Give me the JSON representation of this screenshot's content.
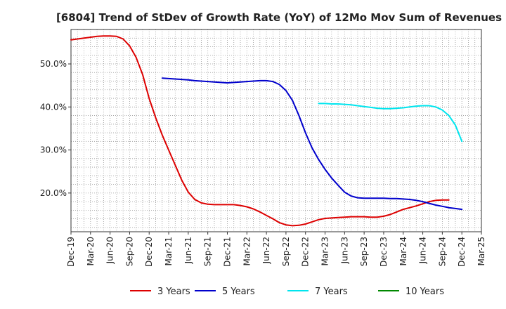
{
  "chart_data": {
    "type": "line",
    "title": "[6804]  Trend of StDev of Growth Rate (YoY) of 12Mo Mov Sum of Revenues",
    "xlabel": "",
    "ylabel": "",
    "ylim": [
      11,
      58
    ],
    "x_range": [
      "2019-12",
      "2025-03"
    ],
    "y_ticks": [
      {
        "value": 20,
        "label": "20.0%"
      },
      {
        "value": 30,
        "label": "30.0%"
      },
      {
        "value": 40,
        "label": "40.0%"
      },
      {
        "value": 50,
        "label": "50.0%"
      }
    ],
    "x_ticks": [
      "Dec-19",
      "Mar-20",
      "Jun-20",
      "Sep-20",
      "Dec-20",
      "Mar-21",
      "Jun-21",
      "Sep-21",
      "Dec-21",
      "Mar-22",
      "Jun-22",
      "Sep-22",
      "Dec-22",
      "Mar-23",
      "Jun-23",
      "Sep-23",
      "Dec-23",
      "Mar-24",
      "Jun-24",
      "Sep-24",
      "Dec-24",
      "Mar-25"
    ],
    "series": [
      {
        "name": "3 Years",
        "color": "#dd0000",
        "points": [
          [
            "2019-12",
            55.6
          ],
          [
            "2020-01",
            55.8
          ],
          [
            "2020-02",
            56.0
          ],
          [
            "2020-03",
            56.2
          ],
          [
            "2020-04",
            56.4
          ],
          [
            "2020-05",
            56.5
          ],
          [
            "2020-06",
            56.5
          ],
          [
            "2020-07",
            56.4
          ],
          [
            "2020-08",
            55.8
          ],
          [
            "2020-09",
            54.2
          ],
          [
            "2020-10",
            51.5
          ],
          [
            "2020-11",
            47.5
          ],
          [
            "2020-12",
            42.0
          ],
          [
            "2021-01",
            37.5
          ],
          [
            "2021-02",
            33.5
          ],
          [
            "2021-03",
            30.0
          ],
          [
            "2021-04",
            26.5
          ],
          [
            "2021-05",
            23.0
          ],
          [
            "2021-06",
            20.2
          ],
          [
            "2021-07",
            18.5
          ],
          [
            "2021-08",
            17.7
          ],
          [
            "2021-09",
            17.4
          ],
          [
            "2021-10",
            17.3
          ],
          [
            "2021-11",
            17.3
          ],
          [
            "2021-12",
            17.3
          ],
          [
            "2022-01",
            17.3
          ],
          [
            "2022-02",
            17.1
          ],
          [
            "2022-03",
            16.8
          ],
          [
            "2022-04",
            16.3
          ],
          [
            "2022-05",
            15.6
          ],
          [
            "2022-06",
            14.8
          ],
          [
            "2022-07",
            14.0
          ],
          [
            "2022-08",
            13.1
          ],
          [
            "2022-09",
            12.6
          ],
          [
            "2022-10",
            12.4
          ],
          [
            "2022-11",
            12.5
          ],
          [
            "2022-12",
            12.8
          ],
          [
            "2023-01",
            13.3
          ],
          [
            "2023-02",
            13.8
          ],
          [
            "2023-03",
            14.1
          ],
          [
            "2023-04",
            14.2
          ],
          [
            "2023-05",
            14.3
          ],
          [
            "2023-06",
            14.4
          ],
          [
            "2023-07",
            14.5
          ],
          [
            "2023-08",
            14.5
          ],
          [
            "2023-09",
            14.5
          ],
          [
            "2023-10",
            14.4
          ],
          [
            "2023-11",
            14.4
          ],
          [
            "2023-12",
            14.6
          ],
          [
            "2024-01",
            15.0
          ],
          [
            "2024-02",
            15.6
          ],
          [
            "2024-03",
            16.2
          ],
          [
            "2024-04",
            16.6
          ],
          [
            "2024-05",
            17.0
          ],
          [
            "2024-06",
            17.5
          ],
          [
            "2024-07",
            18.0
          ],
          [
            "2024-08",
            18.3
          ],
          [
            "2024-09",
            18.4
          ],
          [
            "2024-10",
            18.4
          ]
        ]
      },
      {
        "name": "5 Years",
        "color": "#0000cc",
        "points": [
          [
            "2021-02",
            46.7
          ],
          [
            "2021-03",
            46.6
          ],
          [
            "2021-04",
            46.5
          ],
          [
            "2021-05",
            46.4
          ],
          [
            "2021-06",
            46.3
          ],
          [
            "2021-07",
            46.1
          ],
          [
            "2021-08",
            46.0
          ],
          [
            "2021-09",
            45.9
          ],
          [
            "2021-10",
            45.8
          ],
          [
            "2021-11",
            45.7
          ],
          [
            "2021-12",
            45.6
          ],
          [
            "2022-01",
            45.7
          ],
          [
            "2022-02",
            45.8
          ],
          [
            "2022-03",
            45.9
          ],
          [
            "2022-04",
            46.0
          ],
          [
            "2022-05",
            46.1
          ],
          [
            "2022-06",
            46.1
          ],
          [
            "2022-07",
            45.9
          ],
          [
            "2022-08",
            45.2
          ],
          [
            "2022-09",
            43.8
          ],
          [
            "2022-10",
            41.5
          ],
          [
            "2022-11",
            38.0
          ],
          [
            "2022-12",
            34.0
          ],
          [
            "2023-01",
            30.5
          ],
          [
            "2023-02",
            27.8
          ],
          [
            "2023-03",
            25.5
          ],
          [
            "2023-04",
            23.5
          ],
          [
            "2023-05",
            21.8
          ],
          [
            "2023-06",
            20.2
          ],
          [
            "2023-07",
            19.3
          ],
          [
            "2023-08",
            18.9
          ],
          [
            "2023-09",
            18.8
          ],
          [
            "2023-10",
            18.8
          ],
          [
            "2023-11",
            18.8
          ],
          [
            "2023-12",
            18.8
          ],
          [
            "2024-01",
            18.7
          ],
          [
            "2024-02",
            18.7
          ],
          [
            "2024-03",
            18.6
          ],
          [
            "2024-04",
            18.5
          ],
          [
            "2024-05",
            18.3
          ],
          [
            "2024-06",
            18.0
          ],
          [
            "2024-07",
            17.6
          ],
          [
            "2024-08",
            17.2
          ],
          [
            "2024-09",
            16.9
          ],
          [
            "2024-10",
            16.6
          ],
          [
            "2024-11",
            16.4
          ],
          [
            "2024-12",
            16.2
          ]
        ]
      },
      {
        "name": "7 Years",
        "color": "#00e5ee",
        "points": [
          [
            "2023-02",
            40.8
          ],
          [
            "2023-03",
            40.8
          ],
          [
            "2023-04",
            40.7
          ],
          [
            "2023-05",
            40.7
          ],
          [
            "2023-06",
            40.6
          ],
          [
            "2023-07",
            40.5
          ],
          [
            "2023-08",
            40.3
          ],
          [
            "2023-09",
            40.1
          ],
          [
            "2023-10",
            39.9
          ],
          [
            "2023-11",
            39.7
          ],
          [
            "2023-12",
            39.6
          ],
          [
            "2024-01",
            39.6
          ],
          [
            "2024-02",
            39.7
          ],
          [
            "2024-03",
            39.8
          ],
          [
            "2024-04",
            40.0
          ],
          [
            "2024-05",
            40.2
          ],
          [
            "2024-06",
            40.3
          ],
          [
            "2024-07",
            40.3
          ],
          [
            "2024-08",
            40.0
          ],
          [
            "2024-09",
            39.3
          ],
          [
            "2024-10",
            38.0
          ],
          [
            "2024-11",
            35.8
          ],
          [
            "2024-12",
            32.0
          ]
        ]
      },
      {
        "name": "10 Years",
        "color": "#008800",
        "points": []
      }
    ],
    "legend_position": "bottom"
  }
}
